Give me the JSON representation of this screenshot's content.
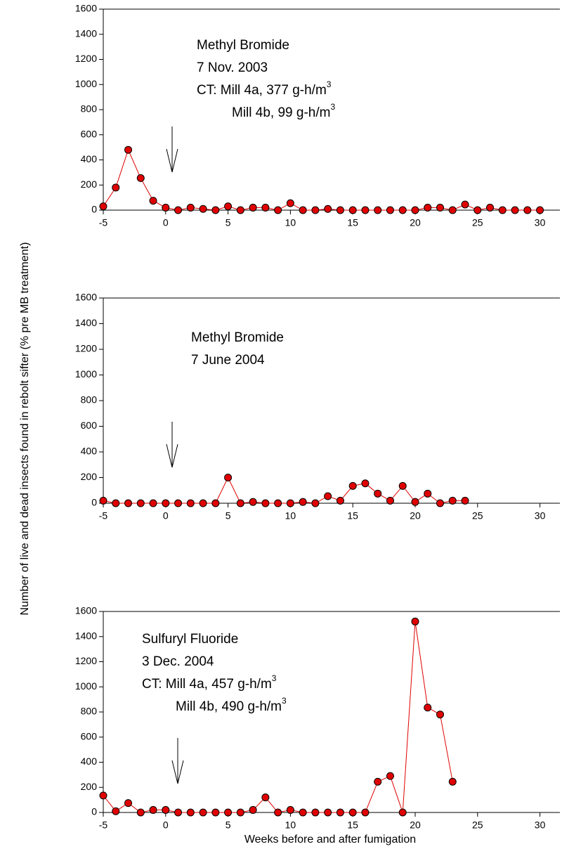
{
  "chart_data": [
    {
      "type": "line",
      "ylabel": "Number of live and dead insects found in rebolt sifter (% pre MB treatment)",
      "annotation": [
        {
          "text": "Methyl Bromide"
        },
        {
          "text": "7 Nov. 2003"
        },
        {
          "text": "CT: Mill 4a, 377 g-h/m",
          "sup": "3"
        },
        {
          "text": "Mill 4b, 99 g-h/m",
          "sup": "3"
        }
      ],
      "x": [
        -5,
        -4,
        -3,
        -2,
        -1,
        0,
        1,
        2,
        3,
        4,
        5,
        6,
        7,
        8,
        9,
        10,
        11,
        12,
        13,
        14,
        15,
        16,
        17,
        18,
        19,
        20,
        21,
        22,
        23,
        24,
        25,
        26,
        27,
        28,
        29,
        30
      ],
      "series": [
        {
          "color": "#e00000",
          "values": [
            30,
            180,
            480,
            255,
            75,
            20,
            0,
            20,
            10,
            0,
            30,
            0,
            20,
            20,
            0,
            55,
            0,
            0,
            10,
            0,
            0,
            0,
            0,
            0,
            0,
            0,
            20,
            20,
            0,
            45,
            0,
            20,
            0,
            0,
            0,
            0
          ]
        }
      ],
      "xlim": [
        -5,
        31.6
      ],
      "xticks": [
        -5,
        0,
        5,
        10,
        15,
        20,
        25,
        30
      ],
      "ylim": [
        0,
        1600
      ],
      "yticks": [
        0,
        200,
        400,
        600,
        800,
        1000,
        1200,
        1400,
        1600
      ]
    },
    {
      "type": "line",
      "annotation": [
        {
          "text": "Methyl Bromide"
        },
        {
          "text": "7 June 2004"
        }
      ],
      "x": [
        -5,
        -4,
        -3,
        -2,
        -1,
        0,
        1,
        2,
        3,
        4,
        5,
        6,
        7,
        8,
        9,
        10,
        11,
        12,
        13,
        14,
        15,
        16,
        17,
        18,
        19,
        20,
        21,
        22,
        23,
        24
      ],
      "series": [
        {
          "color": "#e00000",
          "values": [
            20,
            0,
            0,
            0,
            0,
            0,
            0,
            0,
            0,
            0,
            200,
            0,
            10,
            0,
            0,
            0,
            10,
            0,
            55,
            20,
            135,
            155,
            75,
            20,
            135,
            10,
            75,
            0,
            20,
            20
          ]
        }
      ],
      "xlim": [
        -5,
        31.6
      ],
      "xticks": [
        -5,
        0,
        5,
        10,
        15,
        20,
        25,
        30
      ],
      "ylim": [
        0,
        1600
      ],
      "yticks": [
        0,
        200,
        400,
        600,
        800,
        1000,
        1200,
        1400,
        1600
      ]
    },
    {
      "type": "line",
      "xlabel": "Weeks before and after fumigation",
      "annotation": [
        {
          "text": "Sulfuryl Fluoride"
        },
        {
          "text": "3 Dec. 2004"
        },
        {
          "text": "CT: Mill 4a, 457 g-h/m",
          "sup": "3"
        },
        {
          "text": "Mill 4b, 490 g-h/m",
          "sup": "3"
        }
      ],
      "x": [
        -5,
        -4,
        -3,
        -2,
        -1,
        0,
        1,
        2,
        3,
        4,
        5,
        6,
        7,
        8,
        9,
        10,
        11,
        12,
        13,
        14,
        15,
        16,
        17,
        18,
        19,
        20,
        21,
        22,
        23
      ],
      "series": [
        {
          "color": "#e00000",
          "values": [
            135,
            10,
            75,
            0,
            20,
            20,
            0,
            0,
            0,
            0,
            0,
            0,
            20,
            120,
            0,
            20,
            0,
            0,
            0,
            0,
            0,
            0,
            245,
            290,
            0,
            1520,
            835,
            780,
            245
          ]
        }
      ],
      "xlim": [
        -5,
        31.6
      ],
      "xticks": [
        -5,
        0,
        5,
        10,
        15,
        20,
        25,
        30
      ],
      "ylim": [
        0,
        1600
      ],
      "yticks": [
        0,
        200,
        400,
        600,
        800,
        1000,
        1200,
        1400,
        1600
      ]
    }
  ]
}
